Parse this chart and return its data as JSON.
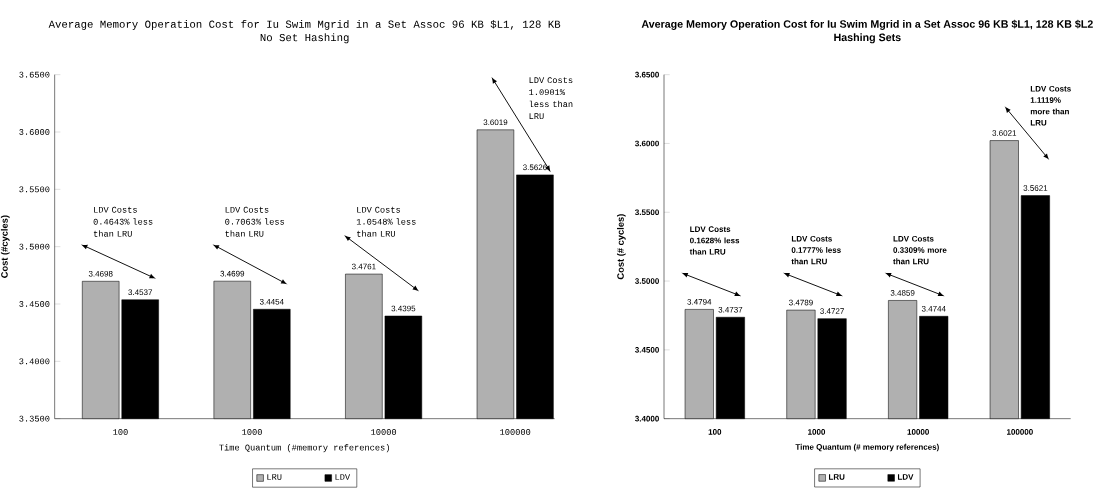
{
  "chart_data": [
    {
      "type": "bar",
      "title": "Average Memory Operation Cost for Iu Swim Mgrid in a Set Assoc 96 KB $L1, 128 KB",
      "subtitle": "No Set Hashing",
      "xlabel": "Time Quantum (#memory references)",
      "ylabel": "Cost (#cycles)",
      "categories": [
        "100",
        "1000",
        "10000",
        "100000"
      ],
      "series": [
        {
          "name": "LRU",
          "color": "#b0b0b0",
          "values": [
            3.4698,
            3.4699,
            3.4761,
            3.6019
          ]
        },
        {
          "name": "LDV",
          "color": "#000000",
          "values": [
            3.4537,
            3.4454,
            3.4395,
            3.5626
          ]
        }
      ],
      "ylim": [
        3.35,
        3.65
      ],
      "yticks": [
        {
          "value": 3.35,
          "label": "3.3500"
        },
        {
          "value": 3.4,
          "label": "3.4000"
        },
        {
          "value": 3.45,
          "label": "3.4500"
        },
        {
          "value": 3.5,
          "label": "3.5000"
        },
        {
          "value": 3.55,
          "label": "3.5500"
        },
        {
          "value": 3.6,
          "label": "3.6000"
        },
        {
          "value": 3.65,
          "label": "3.6500"
        }
      ],
      "data_labels": true,
      "legend": "bottom",
      "annotations": [
        "LDV Costs 0.4643% less than LRU",
        "LDV Costs 0.7063% less than LRU",
        "LDV Costs 1.0548% less than LRU",
        "LDV Costs 1.0901% less than LRU"
      ]
    },
    {
      "type": "bar",
      "title": "Average Memory Operation Cost for Iu Swim Mgrid in a Set Assoc 96 KB $L1, 128 KB $L2",
      "subtitle": "Hashing Sets",
      "xlabel": "Time Quantum (# memory references)",
      "ylabel": "Cost (# cycles)",
      "categories": [
        "100",
        "1000",
        "10000",
        "100000"
      ],
      "series": [
        {
          "name": "LRU",
          "color": "#b0b0b0",
          "values": [
            3.4794,
            3.4789,
            3.4859,
            3.6021
          ]
        },
        {
          "name": "LDV",
          "color": "#000000",
          "values": [
            3.4737,
            3.4727,
            3.4744,
            3.5621
          ]
        }
      ],
      "ylim": [
        3.4,
        3.65
      ],
      "yticks": [
        {
          "value": 3.4,
          "label": "3.4000"
        },
        {
          "value": 3.45,
          "label": "3.4500"
        },
        {
          "value": 3.5,
          "label": "3.5000"
        },
        {
          "value": 3.55,
          "label": "3.5500"
        },
        {
          "value": 3.6,
          "label": "3.6000"
        },
        {
          "value": 3.65,
          "label": "3.6500"
        }
      ],
      "data_labels": true,
      "legend": "bottom",
      "annotations": [
        "LDV Costs 0.1628% less than LRU",
        "LDV Costs 0.1777% less than LRU",
        "LDV Costs 0.3309% more than LRU",
        "LDV Costs 1.1119% more than LRU"
      ]
    }
  ]
}
